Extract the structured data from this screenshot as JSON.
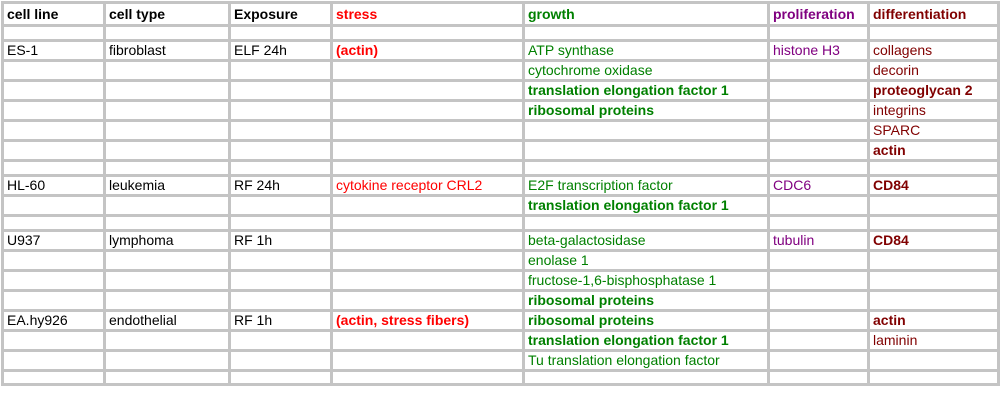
{
  "colors": {
    "black": "#000000",
    "stress": "#ff0000",
    "growth": "#008000",
    "proliferation": "#800080",
    "differentiation": "#800000",
    "grid": "#c4c4c4"
  },
  "columns": [
    {
      "key": "cell_line",
      "label": "cell line",
      "color": "black"
    },
    {
      "key": "cell_type",
      "label": "cell type",
      "color": "black"
    },
    {
      "key": "exposure",
      "label": "Exposure",
      "color": "black"
    },
    {
      "key": "stress",
      "label": "stress",
      "color": "stress"
    },
    {
      "key": "growth",
      "label": "growth",
      "color": "growth"
    },
    {
      "key": "proliferation",
      "label": "proliferation",
      "color": "proliferation"
    },
    {
      "key": "differentiation",
      "label": "differentiation",
      "color": "differentiation"
    }
  ],
  "rows": [
    [
      {
        "t": ""
      },
      {
        "t": ""
      },
      {
        "t": ""
      },
      {
        "t": ""
      },
      {
        "t": ""
      },
      {
        "t": ""
      },
      {
        "t": ""
      }
    ],
    [
      {
        "t": "ES-1"
      },
      {
        "t": "fibroblast"
      },
      {
        "t": "ELF 24h"
      },
      {
        "t": "(actin)",
        "b": true
      },
      {
        "t": "ATP synthase"
      },
      {
        "t": "histone H3"
      },
      {
        "t": "collagens"
      }
    ],
    [
      {
        "t": ""
      },
      {
        "t": ""
      },
      {
        "t": ""
      },
      {
        "t": ""
      },
      {
        "t": "cytochrome oxidase"
      },
      {
        "t": ""
      },
      {
        "t": "decorin"
      }
    ],
    [
      {
        "t": ""
      },
      {
        "t": ""
      },
      {
        "t": ""
      },
      {
        "t": ""
      },
      {
        "t": "translation elongation factor 1",
        "b": true
      },
      {
        "t": ""
      },
      {
        "t": "proteoglycan 2",
        "b": true
      }
    ],
    [
      {
        "t": ""
      },
      {
        "t": ""
      },
      {
        "t": ""
      },
      {
        "t": ""
      },
      {
        "t": "ribosomal proteins",
        "b": true
      },
      {
        "t": ""
      },
      {
        "t": "integrins"
      }
    ],
    [
      {
        "t": ""
      },
      {
        "t": ""
      },
      {
        "t": ""
      },
      {
        "t": ""
      },
      {
        "t": ""
      },
      {
        "t": ""
      },
      {
        "t": "SPARC"
      }
    ],
    [
      {
        "t": ""
      },
      {
        "t": ""
      },
      {
        "t": ""
      },
      {
        "t": ""
      },
      {
        "t": ""
      },
      {
        "t": ""
      },
      {
        "t": "actin",
        "b": true
      }
    ],
    [
      {
        "t": ""
      },
      {
        "t": ""
      },
      {
        "t": ""
      },
      {
        "t": ""
      },
      {
        "t": ""
      },
      {
        "t": ""
      },
      {
        "t": ""
      }
    ],
    [
      {
        "t": "HL-60"
      },
      {
        "t": "leukemia"
      },
      {
        "t": "RF 24h"
      },
      {
        "t": "cytokine receptor CRL2"
      },
      {
        "t": "E2F transcription factor"
      },
      {
        "t": "CDC6"
      },
      {
        "t": "CD84",
        "b": true
      }
    ],
    [
      {
        "t": ""
      },
      {
        "t": ""
      },
      {
        "t": ""
      },
      {
        "t": ""
      },
      {
        "t": "translation elongation factor 1",
        "b": true
      },
      {
        "t": ""
      },
      {
        "t": ""
      }
    ],
    [
      {
        "t": ""
      },
      {
        "t": ""
      },
      {
        "t": ""
      },
      {
        "t": ""
      },
      {
        "t": ""
      },
      {
        "t": ""
      },
      {
        "t": ""
      }
    ],
    [
      {
        "t": "U937"
      },
      {
        "t": "lymphoma"
      },
      {
        "t": "RF 1h"
      },
      {
        "t": ""
      },
      {
        "t": "beta-galactosidase"
      },
      {
        "t": "tubulin"
      },
      {
        "t": "CD84",
        "b": true
      }
    ],
    [
      {
        "t": ""
      },
      {
        "t": ""
      },
      {
        "t": ""
      },
      {
        "t": ""
      },
      {
        "t": "enolase 1"
      },
      {
        "t": ""
      },
      {
        "t": ""
      }
    ],
    [
      {
        "t": ""
      },
      {
        "t": ""
      },
      {
        "t": ""
      },
      {
        "t": ""
      },
      {
        "t": "fructose-1,6-bisphosphatase 1"
      },
      {
        "t": ""
      },
      {
        "t": ""
      }
    ],
    [
      {
        "t": ""
      },
      {
        "t": ""
      },
      {
        "t": ""
      },
      {
        "t": ""
      },
      {
        "t": "ribosomal proteins",
        "b": true
      },
      {
        "t": ""
      },
      {
        "t": ""
      }
    ],
    [
      {
        "t": "EA.hy926"
      },
      {
        "t": "endothelial"
      },
      {
        "t": "RF 1h"
      },
      {
        "t": "(actin, stress fibers)",
        "b": true
      },
      {
        "t": "ribosomal proteins",
        "b": true
      },
      {
        "t": ""
      },
      {
        "t": "actin",
        "b": true
      }
    ],
    [
      {
        "t": ""
      },
      {
        "t": ""
      },
      {
        "t": ""
      },
      {
        "t": ""
      },
      {
        "t": "translation elongation factor 1",
        "b": true
      },
      {
        "t": ""
      },
      {
        "t": "laminin"
      }
    ],
    [
      {
        "t": ""
      },
      {
        "t": ""
      },
      {
        "t": ""
      },
      {
        "t": ""
      },
      {
        "t": "Tu translation elongation factor"
      },
      {
        "t": ""
      },
      {
        "t": ""
      }
    ],
    [
      {
        "t": ""
      },
      {
        "t": ""
      },
      {
        "t": ""
      },
      {
        "t": ""
      },
      {
        "t": ""
      },
      {
        "t": ""
      },
      {
        "t": ""
      }
    ]
  ]
}
